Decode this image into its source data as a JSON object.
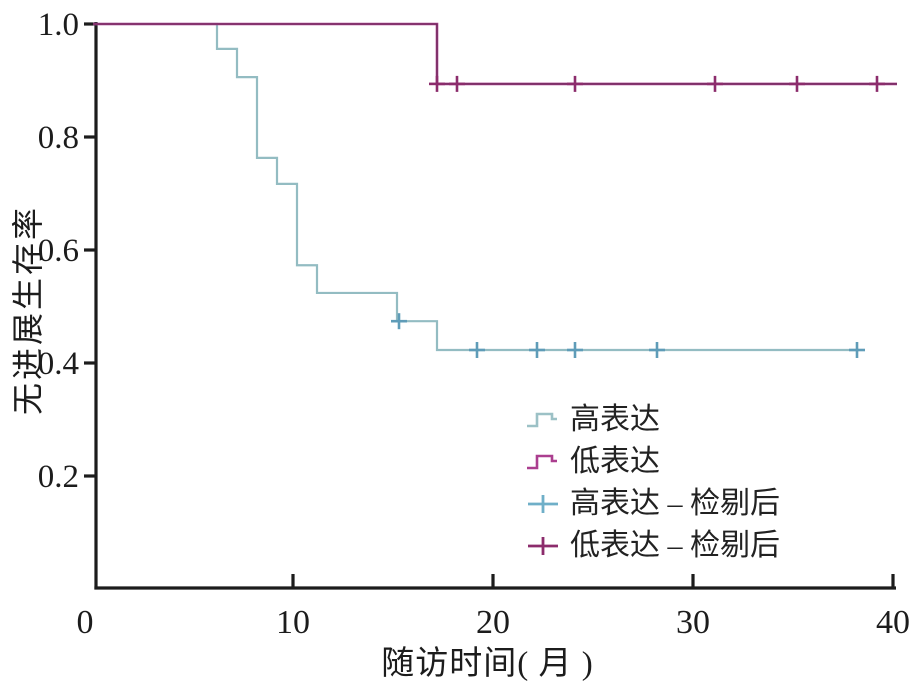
{
  "figure": {
    "background": "#ffffff",
    "axis_color": "#1c1c1c",
    "text_color": "#1c1c1c"
  },
  "axes": {
    "x_title": "随访时间( 月 )",
    "y_title": "无进展生存率"
  },
  "legend": {
    "items": [
      {
        "label": "高表达",
        "symbol": "step",
        "color": "#9cc1c6"
      },
      {
        "label": "低表达",
        "symbol": "step",
        "color": "#ab3e8f"
      },
      {
        "label": "高表达 – 检剔后",
        "symbol": "plus",
        "color": "#6fafc8"
      },
      {
        "label": "低表达 – 检剔后",
        "symbol": "plus",
        "color": "#8c2c6c"
      }
    ]
  },
  "chart_data": {
    "type": "line",
    "subtype": "kaplan-meier-step",
    "title": "",
    "xlabel": "随访时间( 月 )",
    "ylabel": "无进展生存率",
    "xlim": [
      0,
      40
    ],
    "ylim": [
      0,
      1.0
    ],
    "x_ticks": [
      0,
      10,
      20,
      30,
      40
    ],
    "y_ticks": [
      1.0,
      0.8,
      0.6,
      0.4,
      0.2
    ],
    "y_tick_labels": [
      "1.0",
      "0.8",
      "0.6",
      "0.4",
      "0.2"
    ],
    "grid": false,
    "legend_position": "lower-right-inside",
    "series": [
      {
        "name": "高表达",
        "color": "#93bcc2",
        "line_width": 2.2,
        "start_survival": 1.0,
        "end_time": 38.3,
        "drops": [
          [
            6.2,
            0.956
          ],
          [
            7.2,
            0.906
          ],
          [
            8.2,
            0.763
          ],
          [
            9.2,
            0.717
          ],
          [
            10.2,
            0.573
          ],
          [
            11.2,
            0.524
          ],
          [
            15.2,
            0.474
          ],
          [
            17.2,
            0.423
          ]
        ],
        "censor_series_name": "高表达 – 检剔后",
        "censor_color": "#5f9cb8",
        "censors": [
          [
            15.3,
            0.474
          ],
          [
            19.2,
            0.423
          ],
          [
            22.2,
            0.423
          ],
          [
            24.1,
            0.423
          ],
          [
            28.2,
            0.423
          ],
          [
            38.2,
            0.423
          ]
        ]
      },
      {
        "name": "低表达",
        "color": "#ab3e8f",
        "core_color": "#62284f",
        "line_width": 2.6,
        "start_survival": 1.0,
        "end_time": 40.2,
        "drops": [
          [
            17.2,
            0.894
          ]
        ],
        "censor_series_name": "低表达 – 检剔后",
        "censor_color": "#8c2c6c",
        "censors": [
          [
            17.2,
            0.894
          ],
          [
            18.2,
            0.894
          ],
          [
            24.1,
            0.894
          ],
          [
            31.1,
            0.894
          ],
          [
            35.2,
            0.894
          ],
          [
            39.2,
            0.894
          ]
        ]
      }
    ]
  }
}
